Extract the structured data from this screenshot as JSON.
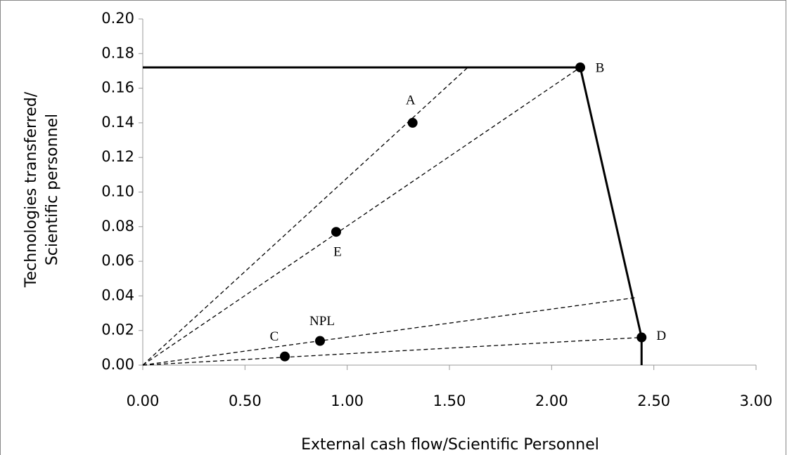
{
  "chart_data": {
    "type": "scatter",
    "x_label": "External cash flow/Scientific Personnel",
    "y_label": [
      "Technologies transferred/",
      "Scientific personnel"
    ],
    "labels": [
      "A",
      "B",
      "C",
      "D",
      "E",
      "NPL"
    ],
    "x": [
      1.32,
      2.14,
      0.695,
      2.44,
      0.946,
      0.867
    ],
    "y": [
      0.14,
      0.172,
      0.005,
      0.016,
      0.077,
      0.014
    ],
    "color": "#000000",
    "frontier": {
      "x": [
        0,
        2.14,
        2.44,
        2.44
      ],
      "y": [
        0.172,
        0.172,
        0.016,
        0
      ]
    },
    "rays": [
      {
        "x": [
          0,
          1.59
        ],
        "y": [
          0,
          0.172
        ]
      },
      {
        "x": [
          0,
          2.14
        ],
        "y": [
          0,
          0.172
        ]
      },
      {
        "x": [
          0,
          2.41
        ],
        "y": [
          0,
          0.039
        ]
      },
      {
        "x": [
          0,
          2.44
        ],
        "y": [
          0,
          0.016
        ]
      }
    ],
    "xlim": [
      0,
      3
    ],
    "ylim": [
      0,
      0.2
    ],
    "xticks": [
      {
        "value": 0,
        "label": "0.00"
      },
      {
        "value": 0.5,
        "label": "0.50"
      },
      {
        "value": 1,
        "label": "1.00"
      },
      {
        "value": 1.5,
        "label": "1.50"
      },
      {
        "value": 2,
        "label": "2.00"
      },
      {
        "value": 2.5,
        "label": "2.50"
      },
      {
        "value": 3,
        "label": "3.00"
      }
    ],
    "yticks": [
      {
        "value": 0,
        "label": "0.00"
      },
      {
        "value": 0.02,
        "label": "0.02"
      },
      {
        "value": 0.04,
        "label": "0.04"
      },
      {
        "value": 0.06,
        "label": "0.06"
      },
      {
        "value": 0.08,
        "label": "0.08"
      },
      {
        "value": 0.1,
        "label": "0.10"
      },
      {
        "value": 0.12,
        "label": "0.12"
      },
      {
        "value": 0.14,
        "label": "0.14"
      },
      {
        "value": 0.16,
        "label": "0.16"
      },
      {
        "value": 0.18,
        "label": "0.18"
      },
      {
        "value": 0.2,
        "label": "0.20"
      }
    ],
    "grid": false
  }
}
